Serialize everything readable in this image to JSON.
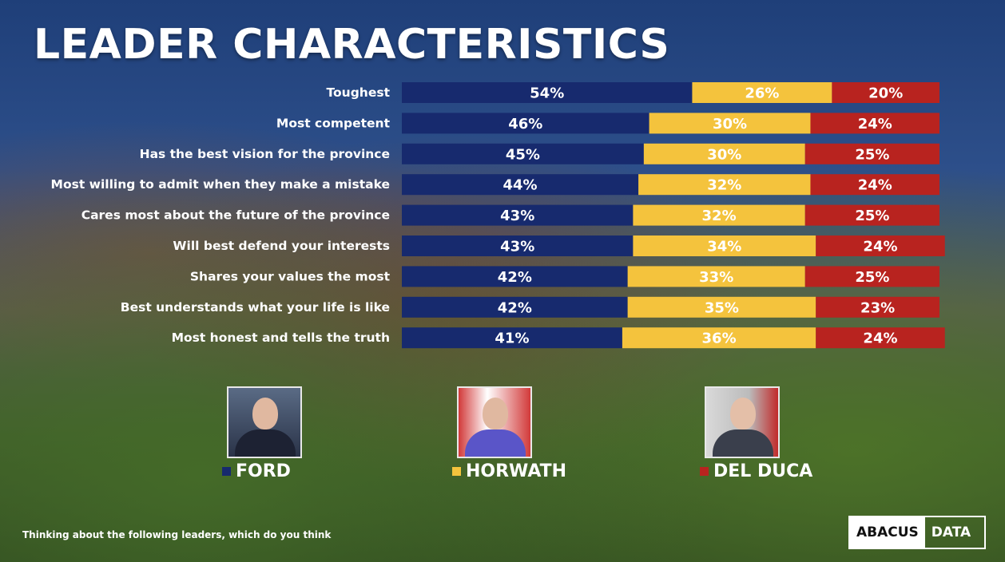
{
  "title": "LEADER CHARACTERISTICS",
  "colors": {
    "ford": "#172a6e",
    "horwath": "#f4c33d",
    "del_duca": "#b8231f"
  },
  "chart_data": {
    "type": "bar",
    "stacked": true,
    "orientation": "horizontal",
    "categories": [
      "Toughest",
      "Most competent",
      "Has the best vision for the province",
      "Most willing to admit when they make a mistake",
      "Cares most about the future of the province",
      "Will best defend your interests",
      "Shares your values the most",
      "Best understands what your life is like",
      "Most honest and tells the truth"
    ],
    "series": [
      {
        "name": "FORD",
        "values": [
          54,
          46,
          45,
          44,
          43,
          43,
          42,
          42,
          41
        ]
      },
      {
        "name": "HORWATH",
        "values": [
          26,
          30,
          30,
          32,
          32,
          34,
          33,
          35,
          36
        ]
      },
      {
        "name": "DEL DUCA",
        "values": [
          20,
          24,
          25,
          24,
          25,
          24,
          25,
          23,
          24
        ]
      }
    ],
    "value_suffix": "%",
    "xlim": [
      0,
      100
    ],
    "legend_position": "bottom"
  },
  "legend": {
    "ford": "FORD",
    "horwath": "HORWATH",
    "del_duca": "DEL DUCA"
  },
  "footnote": "Thinking about the following leaders, which do you think",
  "logo": {
    "left": "ABACUS",
    "right": "DATA"
  }
}
